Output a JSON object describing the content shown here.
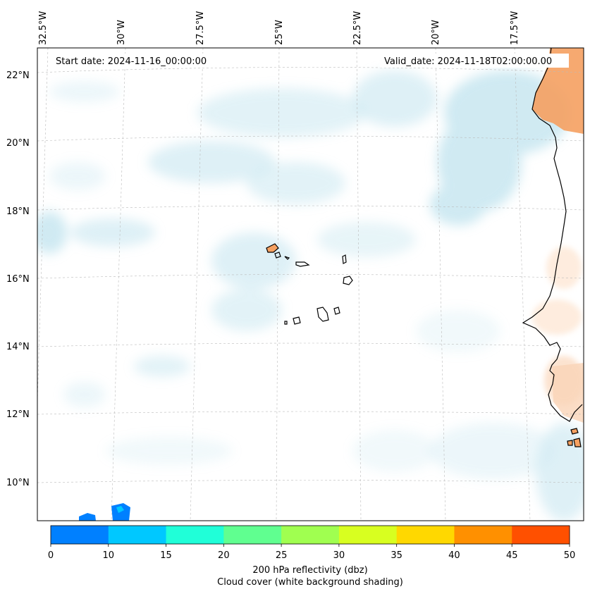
{
  "header": {
    "start_date": "Start date: 2024-11-16_00:00:00",
    "valid_date": "Valid_date: 2024-11-18T02:00:00.00"
  },
  "longitude_labels": [
    "32.5°W",
    "30°W",
    "27.5°W",
    "25°W",
    "22.5°W",
    "20°W",
    "17.5°W"
  ],
  "latitude_labels": [
    "22°N",
    "20°N",
    "18°N",
    "16°N",
    "14°N",
    "12°N",
    "10°N"
  ],
  "colorbar": {
    "ticks": [
      "0",
      "10",
      "15",
      "20",
      "25",
      "30",
      "35",
      "40",
      "45",
      "50"
    ],
    "colors": [
      "#0080ff",
      "#00c8ff",
      "#20ffd8",
      "#60ff90",
      "#a0ff50",
      "#d8ff20",
      "#ffd800",
      "#ff9000",
      "#ff5000"
    ],
    "caption_line1": "200 hPa reflectivity (dbz)",
    "caption_line2": "Cloud cover (white background shading)"
  },
  "map_colors": {
    "cloud": "#a9d9e8",
    "land_warm": "#f5a060",
    "land_light": "#fde0c8",
    "coast": "#000000",
    "grid": "#bbbbbb"
  }
}
